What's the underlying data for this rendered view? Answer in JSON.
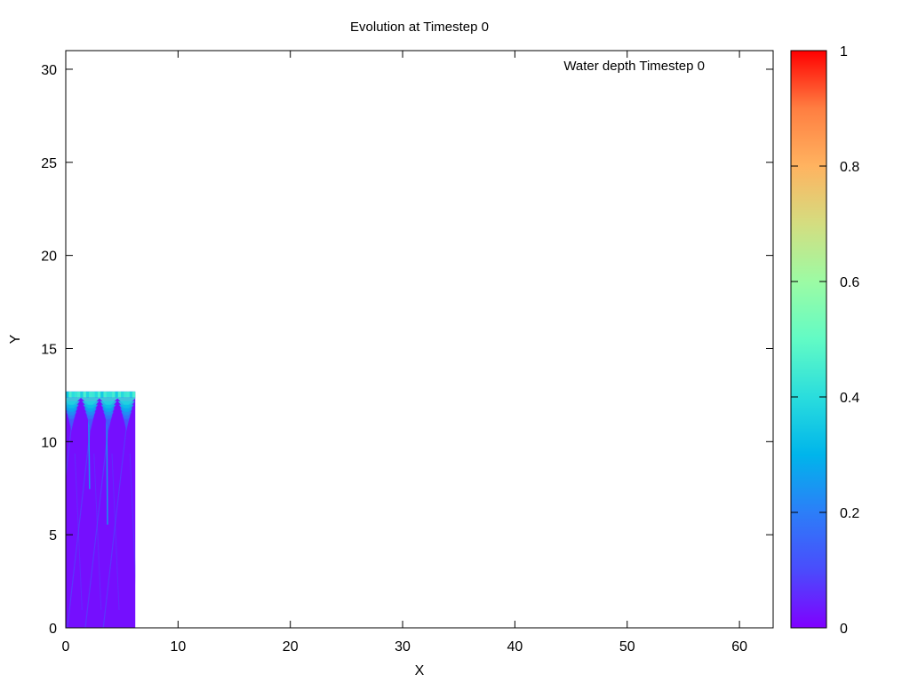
{
  "chart_data": {
    "type": "heatmap",
    "title": "Evolution at Timestep 0",
    "xlabel": "X",
    "ylabel": "Y",
    "xlim": [
      0,
      63
    ],
    "ylim": [
      0,
      31
    ],
    "xticks": [
      0,
      10,
      20,
      30,
      40,
      50,
      60
    ],
    "yticks": [
      0,
      5,
      10,
      15,
      20,
      25,
      30
    ],
    "key_label": "Water depth Timestep 0",
    "legend_position": "top-right",
    "grid": false,
    "colorbar": {
      "range": [
        0,
        1
      ],
      "ticks": [
        0,
        0.2,
        0.4,
        0.6,
        0.8,
        1
      ],
      "tick_labels": [
        "0",
        "0.2",
        "0.4",
        "0.6",
        "0.8",
        "1"
      ],
      "colormap": "rainbow"
    },
    "data_region": {
      "x": [
        0,
        6.2
      ],
      "y": [
        0,
        12.7
      ]
    },
    "field_summary": {
      "background_value": 0.02,
      "crest_value": 0.42,
      "crest_x": [
        0.5,
        2.2,
        3.8,
        5.4
      ],
      "crest_y": 12.7
    }
  }
}
